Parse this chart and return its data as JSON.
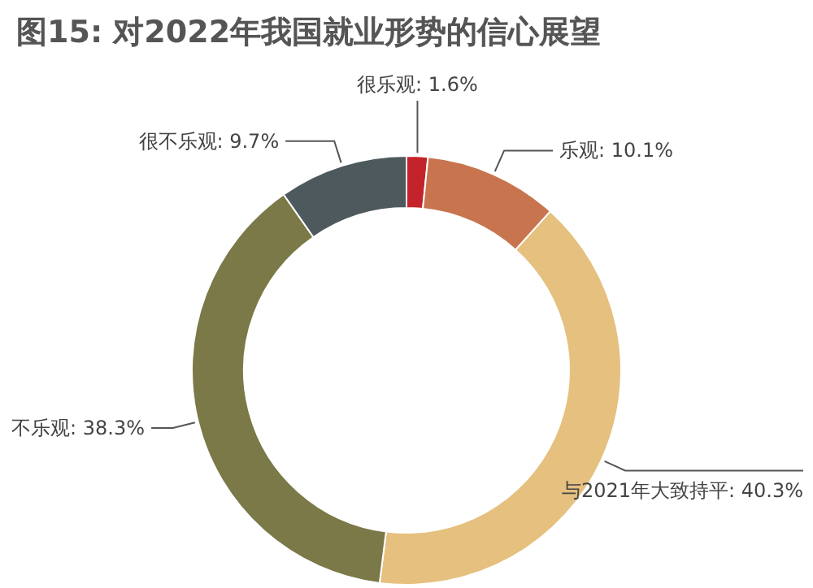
{
  "chart_data": {
    "type": "donut",
    "title": "图15: 对2022年我国就业形势的信心展望",
    "categories": [
      "很乐观",
      "乐观",
      "与2021年大致持平",
      "不乐观",
      "很不乐观"
    ],
    "value_labels": [
      "1.6%",
      "10.1%",
      "40.3%",
      "38.3%",
      "9.7%"
    ],
    "values": [
      1.6,
      10.1,
      40.3,
      38.3,
      9.7
    ],
    "colors": [
      "#c4232b",
      "#c8744f",
      "#e5c07e",
      "#7a7947",
      "#4e595e"
    ],
    "legend": false
  }
}
